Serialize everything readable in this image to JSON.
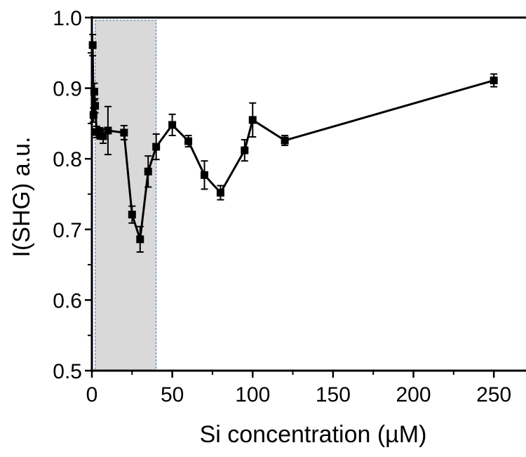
{
  "chart_data": {
    "type": "line",
    "xlabel": "Si concentration (µM)",
    "ylabel": "I(SHG) a.u.",
    "xlim": [
      0,
      270
    ],
    "ylim": [
      0.5,
      1.0
    ],
    "xticks": [
      0,
      50,
      100,
      150,
      200,
      250
    ],
    "xtick_labels": [
      "0",
      "50",
      "100",
      "150",
      "200",
      "250"
    ],
    "yticks": [
      0.5,
      0.6,
      0.7,
      0.8,
      0.9,
      1.0
    ],
    "ytick_labels": [
      "0.5",
      "0.6",
      "0.7",
      "0.8",
      "0.9",
      "1.0"
    ],
    "grid": false,
    "shaded_region": {
      "x_start": 2,
      "x_end": 40,
      "fill": "#d9d9d9",
      "border": "#4a6fa5"
    },
    "series": [
      {
        "marker": "square",
        "color": "#000000",
        "points": [
          {
            "x": 0.5,
            "y": 0.961,
            "err": 0.015
          },
          {
            "x": 1,
            "y": 0.862,
            "err": 0.01
          },
          {
            "x": 1.5,
            "y": 0.895,
            "err": 0.012
          },
          {
            "x": 2,
            "y": 0.875,
            "err": 0.01
          },
          {
            "x": 3,
            "y": 0.838,
            "err": 0.008
          },
          {
            "x": 5,
            "y": 0.836,
            "err": 0.008
          },
          {
            "x": 7,
            "y": 0.832,
            "err": 0.01
          },
          {
            "x": 10,
            "y": 0.84,
            "err": 0.034
          },
          {
            "x": 20,
            "y": 0.837,
            "err": 0.01
          },
          {
            "x": 25,
            "y": 0.721,
            "err": 0.012
          },
          {
            "x": 30,
            "y": 0.686,
            "err": 0.018
          },
          {
            "x": 35,
            "y": 0.782,
            "err": 0.022
          },
          {
            "x": 40,
            "y": 0.817,
            "err": 0.018
          },
          {
            "x": 50,
            "y": 0.848,
            "err": 0.015
          },
          {
            "x": 60,
            "y": 0.825,
            "err": 0.008
          },
          {
            "x": 70,
            "y": 0.777,
            "err": 0.02
          },
          {
            "x": 80,
            "y": 0.752,
            "err": 0.01
          },
          {
            "x": 95,
            "y": 0.812,
            "err": 0.015
          },
          {
            "x": 100,
            "y": 0.855,
            "err": 0.024
          },
          {
            "x": 120,
            "y": 0.826,
            "err": 0.007
          },
          {
            "x": 250,
            "y": 0.911,
            "err": 0.009
          }
        ]
      }
    ]
  }
}
